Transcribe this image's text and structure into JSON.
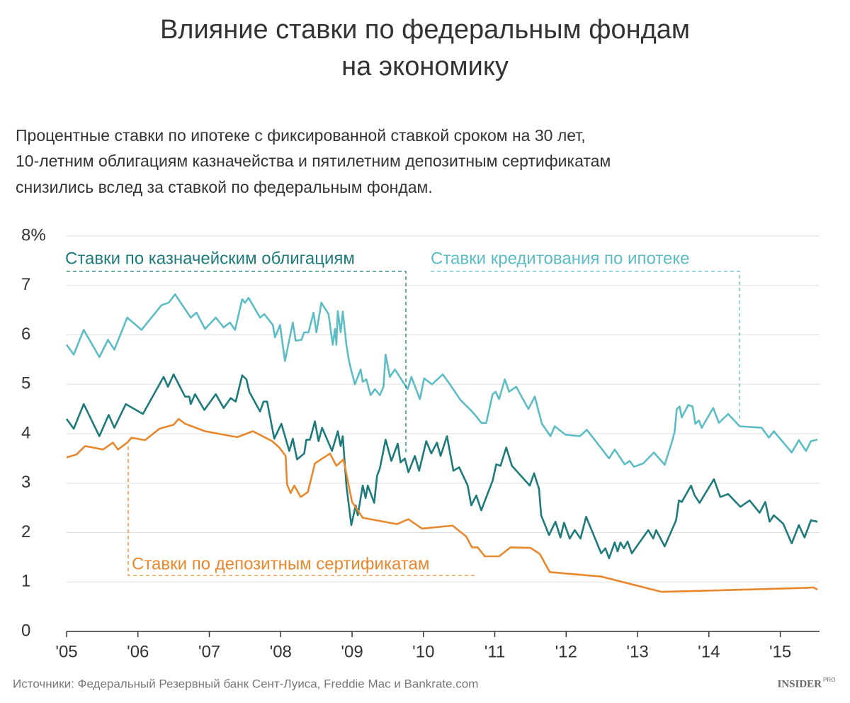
{
  "chart_data": {
    "type": "line",
    "title": [
      "Влияние ставки по федеральным фондам",
      "на экономику"
    ],
    "subtitle": [
      "Процентные ставки по ипотеке с фиксированной ставкой сроком на 30 лет,",
      "10-летним облигациям казначейства и пятилетним депозитным  сертификатам",
      "снизились вслед за ставкой по федеральным фондам."
    ],
    "source": "Источники: Федеральный Резервный банк Сент-Луиса, Freddie Mac и Bankrate.com",
    "logo": "INSIDER",
    "logo_sup": "PRO",
    "xlim": [
      2005,
      2015.55
    ],
    "xticks": [
      {
        "value": 2005,
        "label": "'05"
      },
      {
        "value": 2006,
        "label": "'06"
      },
      {
        "value": 2007,
        "label": "'07"
      },
      {
        "value": 2008,
        "label": "'08"
      },
      {
        "value": 2009,
        "label": "'09"
      },
      {
        "value": 2010,
        "label": "'10"
      },
      {
        "value": 2011,
        "label": "'11"
      },
      {
        "value": 2012,
        "label": "'12"
      },
      {
        "value": 2013,
        "label": "'13"
      },
      {
        "value": 2014,
        "label": "'14"
      },
      {
        "value": 2015,
        "label": "'15"
      }
    ],
    "ylim": [
      0,
      8
    ],
    "yticks": [
      0,
      1,
      2,
      3,
      4,
      5,
      6,
      7,
      {
        "value": 8,
        "label": "8%"
      }
    ],
    "grid": true,
    "series": [
      {
        "name": "Ставки кредитования по ипотеке",
        "color": "#5dbdc5",
        "x": [
          2005.0,
          2005.1,
          2005.24,
          2005.46,
          2005.58,
          2005.67,
          2005.85,
          2006.05,
          2006.33,
          2006.43,
          2006.52,
          2006.74,
          2006.82,
          2006.94,
          2007.09,
          2007.2,
          2007.29,
          2007.36,
          2007.46,
          2007.5,
          2007.55,
          2007.71,
          2007.77,
          2007.89,
          2007.92,
          2007.99,
          2008.06,
          2008.17,
          2008.21,
          2008.29,
          2008.33,
          2008.39,
          2008.46,
          2008.5,
          2008.57,
          2008.67,
          2008.73,
          2008.76,
          2008.78,
          2008.8,
          2008.84,
          2008.87,
          2008.92,
          2008.96,
          2009.04,
          2009.12,
          2009.15,
          2009.2,
          2009.26,
          2009.32,
          2009.39,
          2009.44,
          2009.47,
          2009.53,
          2009.6,
          2009.78,
          2009.83,
          2009.95,
          2010.01,
          2010.12,
          2010.27,
          2010.38,
          2010.52,
          2010.68,
          2010.74,
          2010.81,
          2010.88,
          2010.97,
          2011.01,
          2011.06,
          2011.14,
          2011.2,
          2011.3,
          2011.47,
          2011.56,
          2011.66,
          2011.78,
          2011.84,
          2011.99,
          2012.19,
          2012.29,
          2012.43,
          2012.6,
          2012.68,
          2012.82,
          2012.89,
          2012.95,
          2013.08,
          2013.23,
          2013.38,
          2013.49,
          2013.52,
          2013.55,
          2013.59,
          2013.62,
          2013.71,
          2013.77,
          2013.81,
          2013.86,
          2013.9,
          2014.06,
          2014.14,
          2014.27,
          2014.43,
          2014.74,
          2014.84,
          2014.91,
          2015.16,
          2015.26,
          2015.36,
          2015.43,
          2015.52
        ],
        "values": [
          5.8,
          5.6,
          6.1,
          5.55,
          5.9,
          5.7,
          6.35,
          6.1,
          6.6,
          6.65,
          6.82,
          6.35,
          6.45,
          6.12,
          6.35,
          6.15,
          6.25,
          6.1,
          6.72,
          6.65,
          6.75,
          6.35,
          6.42,
          6.2,
          5.95,
          6.2,
          5.47,
          6.25,
          5.88,
          5.9,
          6.05,
          6.05,
          6.45,
          6.05,
          6.65,
          6.42,
          5.8,
          6.12,
          5.8,
          6.48,
          6.05,
          6.47,
          5.8,
          5.45,
          5.0,
          5.3,
          5.05,
          5.1,
          4.78,
          4.9,
          4.78,
          4.95,
          5.6,
          5.15,
          5.3,
          4.9,
          5.15,
          4.7,
          5.12,
          5.0,
          5.2,
          4.98,
          4.68,
          4.45,
          4.35,
          4.22,
          4.22,
          4.8,
          4.85,
          4.7,
          5.1,
          4.85,
          4.95,
          4.5,
          4.75,
          4.2,
          3.95,
          4.15,
          3.98,
          3.95,
          4.08,
          3.82,
          3.5,
          3.68,
          3.38,
          3.45,
          3.33,
          3.4,
          3.62,
          3.37,
          3.87,
          4.05,
          4.5,
          4.55,
          4.33,
          4.58,
          4.55,
          4.2,
          4.27,
          4.12,
          4.52,
          4.22,
          4.4,
          4.15,
          4.12,
          3.92,
          4.05,
          3.62,
          3.87,
          3.65,
          3.85,
          3.88
        ]
      },
      {
        "name": "Ставки по казначейским облигациям",
        "color": "#1e7b7b",
        "x": [
          2005.0,
          2005.1,
          2005.24,
          2005.46,
          2005.59,
          2005.67,
          2005.83,
          2006.07,
          2006.36,
          2006.42,
          2006.5,
          2006.66,
          2006.72,
          2006.74,
          2006.8,
          2006.93,
          2007.09,
          2007.2,
          2007.3,
          2007.37,
          2007.46,
          2007.52,
          2007.56,
          2007.71,
          2007.76,
          2007.81,
          2007.91,
          2008.01,
          2008.12,
          2008.17,
          2008.23,
          2008.33,
          2008.36,
          2008.41,
          2008.48,
          2008.53,
          2008.58,
          2008.72,
          2008.8,
          2008.84,
          2008.87,
          2008.92,
          2008.99,
          2009.05,
          2009.08,
          2009.15,
          2009.19,
          2009.22,
          2009.31,
          2009.35,
          2009.39,
          2009.47,
          2009.55,
          2009.64,
          2009.68,
          2009.74,
          2009.79,
          2009.88,
          2009.94,
          2010.04,
          2010.11,
          2010.19,
          2010.24,
          2010.33,
          2010.42,
          2010.5,
          2010.62,
          2010.67,
          2010.74,
          2010.81,
          2010.97,
          2011.02,
          2011.08,
          2011.16,
          2011.24,
          2011.49,
          2011.55,
          2011.62,
          2011.65,
          2011.76,
          2011.85,
          2011.92,
          2011.97,
          2012.05,
          2012.12,
          2012.2,
          2012.28,
          2012.49,
          2012.55,
          2012.6,
          2012.68,
          2012.72,
          2012.76,
          2012.81,
          2012.86,
          2012.92,
          2013.15,
          2013.22,
          2013.26,
          2013.38,
          2013.54,
          2013.58,
          2013.62,
          2013.75,
          2013.8,
          2013.87,
          2014.07,
          2014.16,
          2014.27,
          2014.44,
          2014.57,
          2014.71,
          2014.79,
          2014.85,
          2014.91,
          2015.04,
          2015.16,
          2015.26,
          2015.34,
          2015.43,
          2015.52
        ],
        "values": [
          4.3,
          4.1,
          4.6,
          3.95,
          4.38,
          4.12,
          4.6,
          4.4,
          5.15,
          4.95,
          5.2,
          4.75,
          4.75,
          4.6,
          4.8,
          4.48,
          4.8,
          4.52,
          4.72,
          4.65,
          5.18,
          5.1,
          4.85,
          4.45,
          4.65,
          4.65,
          3.9,
          4.2,
          3.65,
          3.9,
          3.48,
          3.6,
          3.88,
          3.88,
          4.25,
          3.85,
          4.12,
          3.65,
          4.05,
          3.75,
          3.95,
          2.95,
          2.15,
          2.55,
          2.35,
          2.95,
          2.7,
          2.95,
          2.6,
          3.15,
          3.3,
          3.88,
          3.45,
          3.8,
          3.42,
          3.5,
          3.22,
          3.55,
          3.25,
          3.85,
          3.6,
          3.82,
          3.55,
          3.95,
          3.25,
          3.32,
          2.95,
          2.55,
          2.75,
          2.45,
          3.05,
          3.38,
          3.35,
          3.72,
          3.35,
          2.95,
          3.2,
          2.88,
          2.35,
          1.95,
          2.22,
          1.9,
          2.2,
          1.88,
          2.05,
          1.88,
          2.32,
          1.58,
          1.68,
          1.48,
          1.8,
          1.62,
          1.8,
          1.68,
          1.82,
          1.58,
          2.05,
          1.88,
          2.05,
          1.72,
          2.25,
          2.65,
          2.62,
          2.95,
          2.75,
          2.6,
          3.08,
          2.72,
          2.78,
          2.52,
          2.65,
          2.4,
          2.62,
          2.22,
          2.35,
          2.18,
          1.78,
          2.15,
          1.9,
          2.25,
          2.22
        ]
      },
      {
        "name": "Ставки по депозитным сертификатам",
        "color": "#e8872b",
        "x": [
          2005.0,
          2005.14,
          2005.26,
          2005.51,
          2005.65,
          2005.72,
          2005.85,
          2005.91,
          2006.1,
          2006.3,
          2006.5,
          2006.57,
          2006.66,
          2006.94,
          2007.39,
          2007.61,
          2007.88,
          2007.98,
          2008.07,
          2008.09,
          2008.14,
          2008.19,
          2008.28,
          2008.38,
          2008.48,
          2008.69,
          2008.78,
          2008.88,
          2009.0,
          2009.15,
          2009.63,
          2009.79,
          2009.98,
          2010.41,
          2010.6,
          2010.68,
          2010.76,
          2010.86,
          2011.06,
          2011.22,
          2011.5,
          2011.63,
          2011.77,
          2012.49,
          2013.34,
          2015.36,
          2015.46,
          2015.52
        ],
        "values": [
          3.52,
          3.58,
          3.75,
          3.68,
          3.82,
          3.68,
          3.82,
          3.92,
          3.87,
          4.1,
          4.18,
          4.3,
          4.2,
          4.05,
          3.93,
          4.05,
          3.85,
          3.72,
          3.55,
          2.97,
          2.8,
          2.95,
          2.72,
          2.82,
          3.4,
          3.6,
          3.35,
          3.48,
          2.62,
          2.3,
          2.17,
          2.27,
          2.08,
          2.14,
          1.92,
          1.7,
          1.7,
          1.52,
          1.52,
          1.7,
          1.69,
          1.57,
          1.2,
          1.11,
          0.8,
          0.88,
          0.89,
          0.85
        ]
      }
    ]
  }
}
